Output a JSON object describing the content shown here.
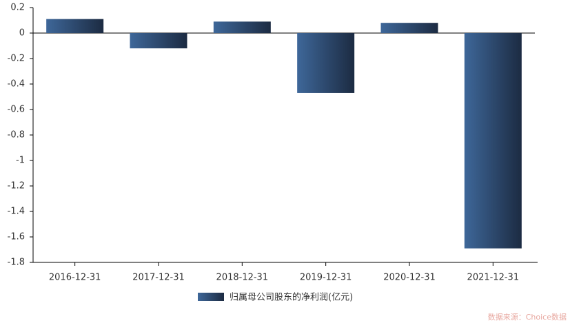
{
  "chart_data": {
    "type": "bar",
    "categories": [
      "2016-12-31",
      "2017-12-31",
      "2018-12-31",
      "2019-12-31",
      "2020-12-31",
      "2021-12-31"
    ],
    "series": [
      {
        "name": "归属母公司股东的净利润(亿元)",
        "gradient": [
          "#3e6799",
          "#1c2b42"
        ],
        "values": [
          0.11,
          -0.12,
          0.09,
          -0.47,
          0.08,
          -1.69
        ]
      }
    ],
    "ylim": [
      -1.8,
      0.2
    ],
    "yticks": [
      0.2,
      0,
      -0.2,
      -0.4,
      -0.6,
      -0.8,
      -1,
      -1.2,
      -1.4,
      -1.6,
      -1.8
    ],
    "source": "数据来源：Choice数据"
  }
}
